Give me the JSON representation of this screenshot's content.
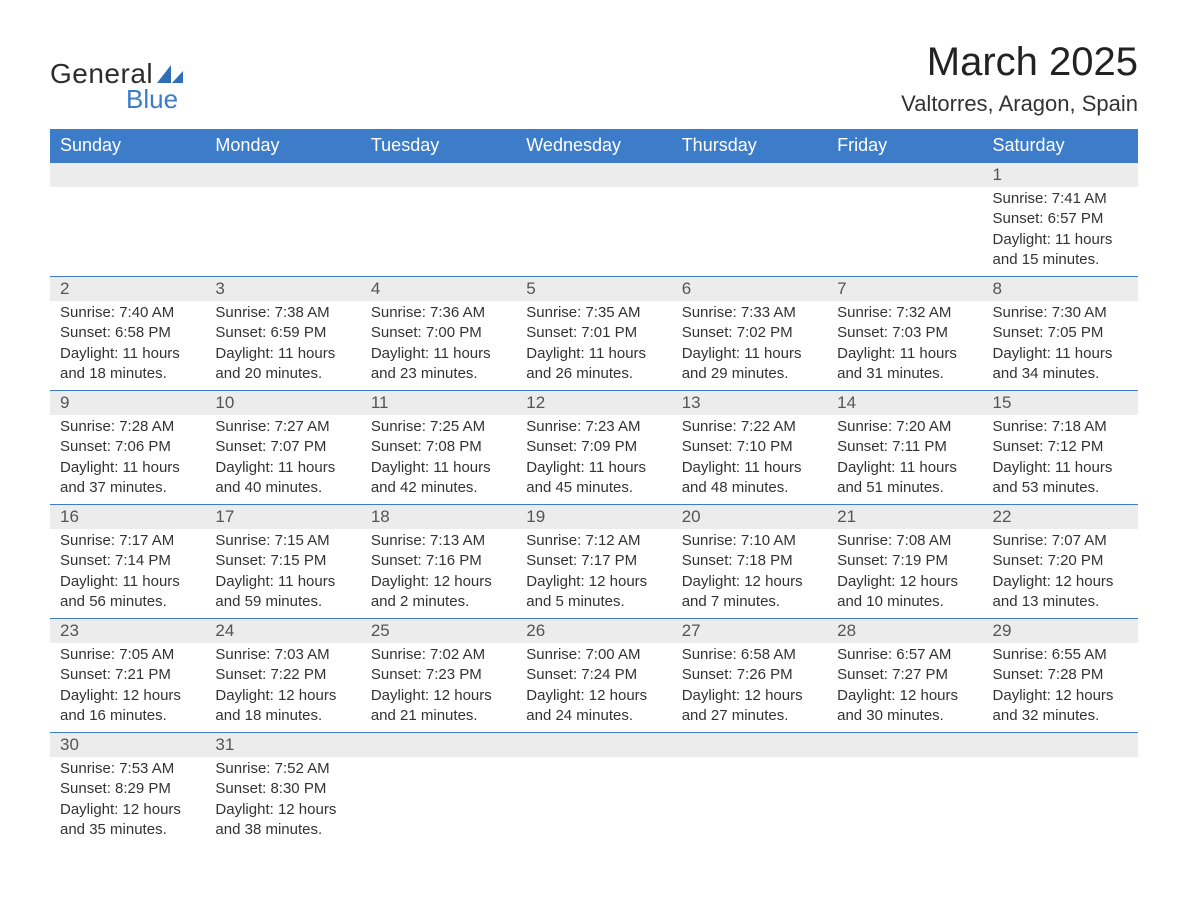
{
  "logo": {
    "word1": "General",
    "word2": "Blue",
    "sail_color": "#2f6fb7",
    "text_color": "#2d2d2d",
    "blue_color": "#3d7cc9"
  },
  "title": "March 2025",
  "location": "Valtorres, Aragon, Spain",
  "colors": {
    "header_bg": "#3d7cc9",
    "header_fg": "#ffffff",
    "daynum_bg": "#ececec",
    "row_border": "#3d7cc9",
    "body_text": "#333333",
    "page_bg": "#ffffff"
  },
  "typography": {
    "title_fontsize": 40,
    "location_fontsize": 22,
    "dayheader_fontsize": 18,
    "daynum_fontsize": 17,
    "body_fontsize": 15,
    "font_family": "Arial"
  },
  "layout": {
    "columns": 7,
    "rows": 6,
    "first_day_column": 6
  },
  "day_headers": [
    "Sunday",
    "Monday",
    "Tuesday",
    "Wednesday",
    "Thursday",
    "Friday",
    "Saturday"
  ],
  "labels": {
    "sunrise": "Sunrise:",
    "sunset": "Sunset:",
    "daylight": "Daylight:"
  },
  "weeks": [
    [
      null,
      null,
      null,
      null,
      null,
      null,
      {
        "d": "1",
        "sr": "7:41 AM",
        "ss": "6:57 PM",
        "dl": "11 hours and 15 minutes."
      }
    ],
    [
      {
        "d": "2",
        "sr": "7:40 AM",
        "ss": "6:58 PM",
        "dl": "11 hours and 18 minutes."
      },
      {
        "d": "3",
        "sr": "7:38 AM",
        "ss": "6:59 PM",
        "dl": "11 hours and 20 minutes."
      },
      {
        "d": "4",
        "sr": "7:36 AM",
        "ss": "7:00 PM",
        "dl": "11 hours and 23 minutes."
      },
      {
        "d": "5",
        "sr": "7:35 AM",
        "ss": "7:01 PM",
        "dl": "11 hours and 26 minutes."
      },
      {
        "d": "6",
        "sr": "7:33 AM",
        "ss": "7:02 PM",
        "dl": "11 hours and 29 minutes."
      },
      {
        "d": "7",
        "sr": "7:32 AM",
        "ss": "7:03 PM",
        "dl": "11 hours and 31 minutes."
      },
      {
        "d": "8",
        "sr": "7:30 AM",
        "ss": "7:05 PM",
        "dl": "11 hours and 34 minutes."
      }
    ],
    [
      {
        "d": "9",
        "sr": "7:28 AM",
        "ss": "7:06 PM",
        "dl": "11 hours and 37 minutes."
      },
      {
        "d": "10",
        "sr": "7:27 AM",
        "ss": "7:07 PM",
        "dl": "11 hours and 40 minutes."
      },
      {
        "d": "11",
        "sr": "7:25 AM",
        "ss": "7:08 PM",
        "dl": "11 hours and 42 minutes."
      },
      {
        "d": "12",
        "sr": "7:23 AM",
        "ss": "7:09 PM",
        "dl": "11 hours and 45 minutes."
      },
      {
        "d": "13",
        "sr": "7:22 AM",
        "ss": "7:10 PM",
        "dl": "11 hours and 48 minutes."
      },
      {
        "d": "14",
        "sr": "7:20 AM",
        "ss": "7:11 PM",
        "dl": "11 hours and 51 minutes."
      },
      {
        "d": "15",
        "sr": "7:18 AM",
        "ss": "7:12 PM",
        "dl": "11 hours and 53 minutes."
      }
    ],
    [
      {
        "d": "16",
        "sr": "7:17 AM",
        "ss": "7:14 PM",
        "dl": "11 hours and 56 minutes."
      },
      {
        "d": "17",
        "sr": "7:15 AM",
        "ss": "7:15 PM",
        "dl": "11 hours and 59 minutes."
      },
      {
        "d": "18",
        "sr": "7:13 AM",
        "ss": "7:16 PM",
        "dl": "12 hours and 2 minutes."
      },
      {
        "d": "19",
        "sr": "7:12 AM",
        "ss": "7:17 PM",
        "dl": "12 hours and 5 minutes."
      },
      {
        "d": "20",
        "sr": "7:10 AM",
        "ss": "7:18 PM",
        "dl": "12 hours and 7 minutes."
      },
      {
        "d": "21",
        "sr": "7:08 AM",
        "ss": "7:19 PM",
        "dl": "12 hours and 10 minutes."
      },
      {
        "d": "22",
        "sr": "7:07 AM",
        "ss": "7:20 PM",
        "dl": "12 hours and 13 minutes."
      }
    ],
    [
      {
        "d": "23",
        "sr": "7:05 AM",
        "ss": "7:21 PM",
        "dl": "12 hours and 16 minutes."
      },
      {
        "d": "24",
        "sr": "7:03 AM",
        "ss": "7:22 PM",
        "dl": "12 hours and 18 minutes."
      },
      {
        "d": "25",
        "sr": "7:02 AM",
        "ss": "7:23 PM",
        "dl": "12 hours and 21 minutes."
      },
      {
        "d": "26",
        "sr": "7:00 AM",
        "ss": "7:24 PM",
        "dl": "12 hours and 24 minutes."
      },
      {
        "d": "27",
        "sr": "6:58 AM",
        "ss": "7:26 PM",
        "dl": "12 hours and 27 minutes."
      },
      {
        "d": "28",
        "sr": "6:57 AM",
        "ss": "7:27 PM",
        "dl": "12 hours and 30 minutes."
      },
      {
        "d": "29",
        "sr": "6:55 AM",
        "ss": "7:28 PM",
        "dl": "12 hours and 32 minutes."
      }
    ],
    [
      {
        "d": "30",
        "sr": "7:53 AM",
        "ss": "8:29 PM",
        "dl": "12 hours and 35 minutes."
      },
      {
        "d": "31",
        "sr": "7:52 AM",
        "ss": "8:30 PM",
        "dl": "12 hours and 38 minutes."
      },
      null,
      null,
      null,
      null,
      null
    ]
  ]
}
